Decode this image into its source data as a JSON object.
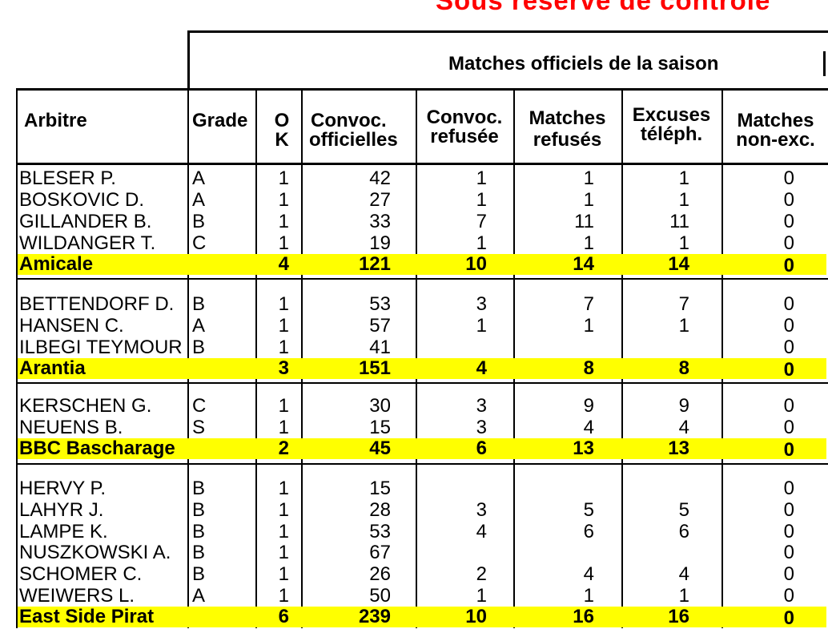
{
  "banner": "Sous réserve de contrôle",
  "super_header": "Matches officiels de la saison",
  "headers": {
    "arbitre": "Arbitre",
    "grade": "Grade",
    "ok1": "O",
    "ok2": "K",
    "convoc1": "Convoc.",
    "convoc2": "officielles",
    "refusee1": "Convoc.",
    "refusee2": "refusée",
    "matches1": "Matches",
    "matches2": "refusés",
    "excuses1": "Excuses",
    "excuses2": "téléph.",
    "nonexc1": "Matches",
    "nonexc2": "non-exc."
  },
  "rows": [
    {
      "name": "BLESER P.",
      "grade": "A",
      "ok": "1",
      "convoc": "42",
      "refusee": "1",
      "matches": "1",
      "excuses": "1",
      "nonexc": "0"
    },
    {
      "name": "BOSKOVIC D.",
      "grade": "A",
      "ok": "1",
      "convoc": "27",
      "refusee": "1",
      "matches": "1",
      "excuses": "1",
      "nonexc": "0"
    },
    {
      "name": "GILLANDER B.",
      "grade": "B",
      "ok": "1",
      "convoc": "33",
      "refusee": "7",
      "matches": "11",
      "excuses": "11",
      "nonexc": "0"
    },
    {
      "name": "WILDANGER T.",
      "grade": "C",
      "ok": "1",
      "convoc": "19",
      "refusee": "1",
      "matches": "1",
      "excuses": "1",
      "nonexc": "0"
    },
    {
      "name": "Amicale",
      "grade": "",
      "ok": "4",
      "convoc": "121",
      "refusee": "10",
      "matches": "14",
      "excuses": "14",
      "nonexc": "0"
    },
    {
      "name": "BETTENDORF D.",
      "grade": "B",
      "ok": "1",
      "convoc": "53",
      "refusee": "3",
      "matches": "7",
      "excuses": "7",
      "nonexc": "0"
    },
    {
      "name": "HANSEN C.",
      "grade": "A",
      "ok": "1",
      "convoc": "57",
      "refusee": "1",
      "matches": "1",
      "excuses": "1",
      "nonexc": "0"
    },
    {
      "name": "ILBEGI TEYMOUR",
      "grade": "B",
      "ok": "1",
      "convoc": "41",
      "refusee": "",
      "matches": "",
      "excuses": "",
      "nonexc": "0"
    },
    {
      "name": "Arantia",
      "grade": "",
      "ok": "3",
      "convoc": "151",
      "refusee": "4",
      "matches": "8",
      "excuses": "8",
      "nonexc": "0"
    },
    {
      "name": "KERSCHEN G.",
      "grade": "C",
      "ok": "1",
      "convoc": "30",
      "refusee": "3",
      "matches": "9",
      "excuses": "9",
      "nonexc": "0"
    },
    {
      "name": "NEUENS B.",
      "grade": "S",
      "ok": "1",
      "convoc": "15",
      "refusee": "3",
      "matches": "4",
      "excuses": "4",
      "nonexc": "0"
    },
    {
      "name": "BBC Bascharage",
      "grade": "",
      "ok": "2",
      "convoc": "45",
      "refusee": "6",
      "matches": "13",
      "excuses": "13",
      "nonexc": "0"
    },
    {
      "name": "HERVY P.",
      "grade": "B",
      "ok": "1",
      "convoc": "15",
      "refusee": "",
      "matches": "",
      "excuses": "",
      "nonexc": "0"
    },
    {
      "name": "LAHYR J.",
      "grade": "B",
      "ok": "1",
      "convoc": "28",
      "refusee": "3",
      "matches": "5",
      "excuses": "5",
      "nonexc": "0"
    },
    {
      "name": "LAMPE K.",
      "grade": "B",
      "ok": "1",
      "convoc": "53",
      "refusee": "4",
      "matches": "6",
      "excuses": "6",
      "nonexc": "0"
    },
    {
      "name": "NUSZKOWSKI A.",
      "grade": "B",
      "ok": "1",
      "convoc": "67",
      "refusee": "",
      "matches": "",
      "excuses": "",
      "nonexc": "0"
    },
    {
      "name": "SCHOMER C.",
      "grade": "B",
      "ok": "1",
      "convoc": "26",
      "refusee": "2",
      "matches": "4",
      "excuses": "4",
      "nonexc": "0"
    },
    {
      "name": "WEIWERS L.",
      "grade": "A",
      "ok": "1",
      "convoc": "50",
      "refusee": "1",
      "matches": "1",
      "excuses": "1",
      "nonexc": "0"
    },
    {
      "name": "East Side Pirat",
      "grade": "",
      "ok": "6",
      "convoc": "239",
      "refusee": "10",
      "matches": "16",
      "excuses": "16",
      "nonexc": "0"
    }
  ]
}
